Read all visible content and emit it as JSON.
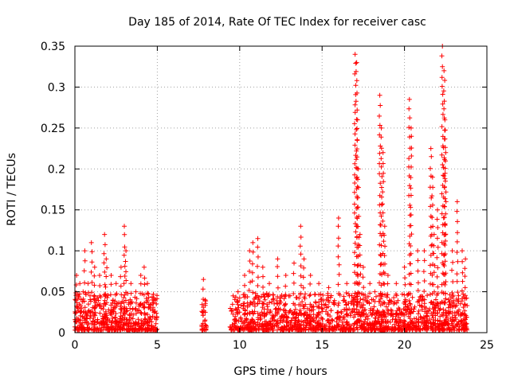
{
  "chart_data": {
    "type": "scatter",
    "title": "Day 185 of 2014, Rate Of TEC Index for receiver casc",
    "xlabel": "GPS time / hours",
    "ylabel": "ROTI / TECUs",
    "xlim": [
      0,
      25
    ],
    "ylim": [
      0,
      0.35
    ],
    "xticks": [
      0,
      5,
      10,
      15,
      20,
      25
    ],
    "xtick_labels": [
      "0",
      "5",
      "10",
      "15",
      "20",
      "25"
    ],
    "yticks": [
      0,
      0.05,
      0.1,
      0.15,
      0.2,
      0.25,
      0.3,
      0.35
    ],
    "ytick_labels": [
      "0",
      "0.05",
      "0.1",
      "0.15",
      "0.2",
      "0.25",
      "0.3",
      "0.35"
    ],
    "grid": true,
    "marker": "+",
    "color": "#ff0000",
    "coverage_hours": [
      [
        0,
        5.0
      ],
      [
        7.7,
        8.0
      ],
      [
        9.4,
        23.8
      ]
    ],
    "series": [
      {
        "name": "ROTI",
        "x": [
          0.1,
          0.3,
          0.5,
          0.6,
          0.8,
          1.0,
          1.2,
          1.5,
          1.8,
          1.9,
          2.2,
          2.5,
          2.8,
          3.0,
          3.1,
          3.4,
          3.7,
          4.0,
          4.2,
          4.4,
          4.7,
          7.8,
          7.9,
          9.6,
          9.9,
          10.3,
          10.6,
          10.8,
          11.1,
          11.4,
          11.8,
          12.3,
          12.8,
          13.3,
          13.7,
          13.9,
          14.3,
          14.8,
          15.4,
          16.0,
          16.5,
          17.0,
          17.1,
          17.15,
          17.2,
          17.3,
          17.5,
          17.9,
          18.2,
          18.5,
          18.6,
          18.7,
          18.8,
          19.0,
          19.5,
          20.0,
          20.3,
          20.4,
          20.8,
          21.2,
          21.6,
          21.7,
          21.8,
          22.0,
          22.3,
          22.4,
          22.45,
          22.5,
          22.9,
          23.2,
          23.5,
          23.7
        ],
        "y": [
          0.07,
          0.06,
          0.05,
          0.1,
          0.06,
          0.11,
          0.08,
          0.07,
          0.12,
          0.09,
          0.07,
          0.06,
          0.08,
          0.13,
          0.1,
          0.06,
          0.05,
          0.07,
          0.08,
          0.06,
          0.04,
          0.065,
          0.04,
          0.045,
          0.05,
          0.07,
          0.1,
          0.11,
          0.115,
          0.08,
          0.06,
          0.09,
          0.07,
          0.085,
          0.13,
          0.09,
          0.07,
          0.06,
          0.055,
          0.14,
          0.06,
          0.34,
          0.33,
          0.26,
          0.2,
          0.12,
          0.08,
          0.06,
          0.05,
          0.29,
          0.25,
          0.22,
          0.13,
          0.07,
          0.06,
          0.08,
          0.285,
          0.25,
          0.1,
          0.1,
          0.225,
          0.19,
          0.12,
          0.15,
          0.35,
          0.32,
          0.26,
          0.22,
          0.1,
          0.16,
          0.1,
          0.09
        ]
      }
    ]
  }
}
